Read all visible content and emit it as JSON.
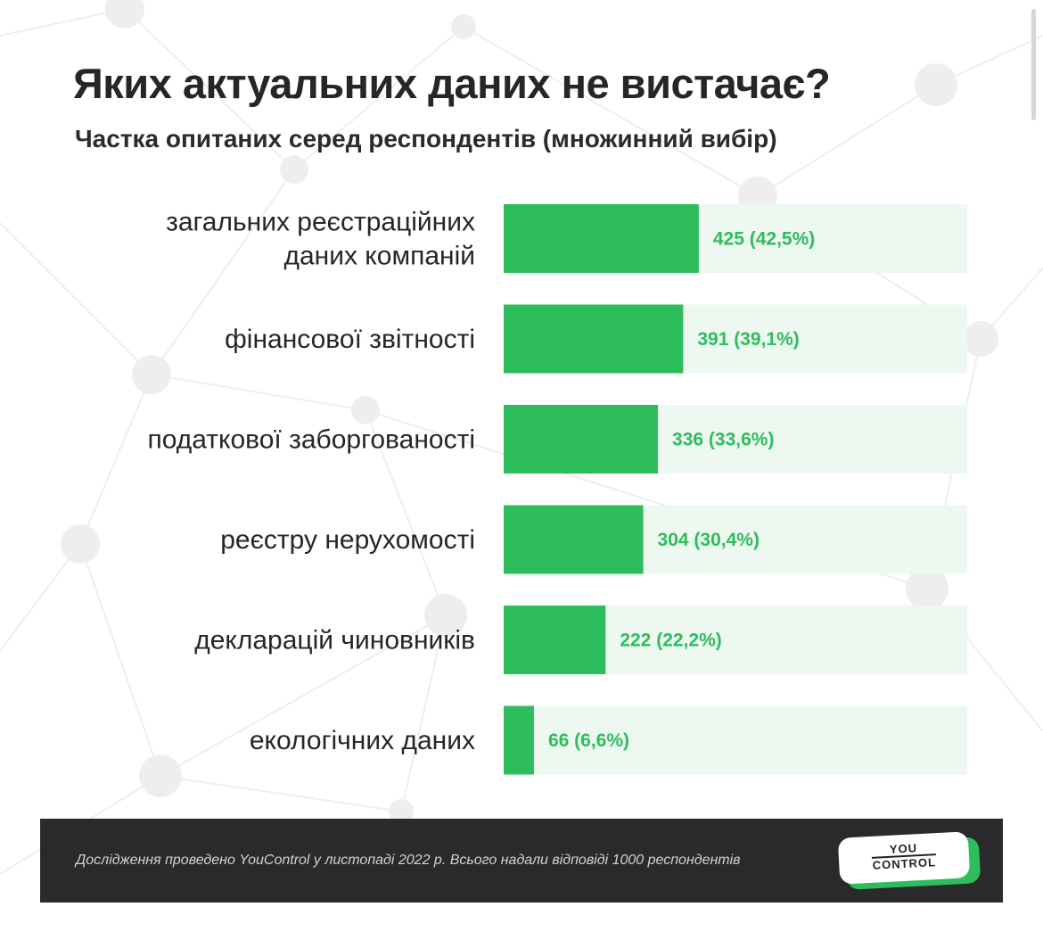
{
  "title": "Яких актуальних даних не вистачає?",
  "subtitle": "Частка опитаних серед респондентів (множинний вибір)",
  "chart_data": {
    "type": "bar",
    "orientation": "horizontal",
    "categories": [
      [
        "загальних реєстраційних",
        "даних компаній"
      ],
      [
        "фінансової звітності"
      ],
      [
        "податкової заборгованості"
      ],
      [
        "реєстру нерухомості"
      ],
      [
        "декларацій чиновників"
      ],
      [
        "екологічних даних"
      ]
    ],
    "values": [
      425,
      391,
      336,
      304,
      222,
      66
    ],
    "percentages": [
      42.5,
      39.1,
      33.6,
      30.4,
      22.2,
      6.6
    ],
    "value_labels": [
      "425 (42,5%)",
      "391 (39,1%)",
      "336 (33,6%)",
      "304 (30,4%)",
      "222 (22,2%)",
      "66 (6,6%)"
    ],
    "xlim": [
      0,
      1000
    ],
    "grid": false,
    "bar_color": "#2ebd5c",
    "track_color": "#edf8f0",
    "label_color": "#2ebd5c"
  },
  "footer": {
    "note": "Дослідження проведено YouControl у листопаді 2022 р. Всього надали відповіді 1000 респондентів"
  },
  "logo": {
    "line1": "YOU",
    "line2": "CONTROL"
  }
}
